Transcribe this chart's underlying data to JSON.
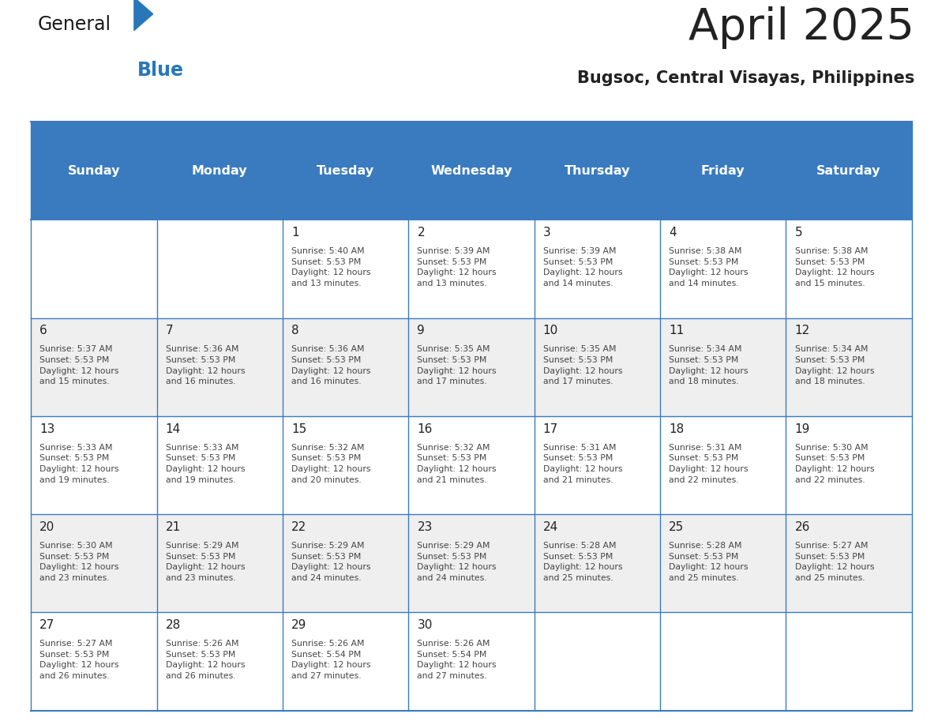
{
  "title": "April 2025",
  "subtitle": "Bugsoc, Central Visayas, Philippines",
  "days_of_week": [
    "Sunday",
    "Monday",
    "Tuesday",
    "Wednesday",
    "Thursday",
    "Friday",
    "Saturday"
  ],
  "header_bg": "#3a7bbf",
  "header_text_color": "#ffffff",
  "cell_bg_even": "#efefef",
  "cell_bg_odd": "#ffffff",
  "cell_border_color": "#3a7bbf",
  "day_number_color": "#222222",
  "info_text_color": "#444444",
  "title_color": "#222222",
  "subtitle_color": "#222222",
  "logo_general_color": "#1a1a1a",
  "logo_blue_color": "#2877b8",
  "weeks": [
    [
      {
        "day": "",
        "sunrise": "",
        "sunset": "",
        "daylight": ""
      },
      {
        "day": "",
        "sunrise": "",
        "sunset": "",
        "daylight": ""
      },
      {
        "day": "1",
        "sunrise": "5:40 AM",
        "sunset": "5:53 PM",
        "daylight": "12 hours and 13 minutes."
      },
      {
        "day": "2",
        "sunrise": "5:39 AM",
        "sunset": "5:53 PM",
        "daylight": "12 hours and 13 minutes."
      },
      {
        "day": "3",
        "sunrise": "5:39 AM",
        "sunset": "5:53 PM",
        "daylight": "12 hours and 14 minutes."
      },
      {
        "day": "4",
        "sunrise": "5:38 AM",
        "sunset": "5:53 PM",
        "daylight": "12 hours and 14 minutes."
      },
      {
        "day": "5",
        "sunrise": "5:38 AM",
        "sunset": "5:53 PM",
        "daylight": "12 hours and 15 minutes."
      }
    ],
    [
      {
        "day": "6",
        "sunrise": "5:37 AM",
        "sunset": "5:53 PM",
        "daylight": "12 hours and 15 minutes."
      },
      {
        "day": "7",
        "sunrise": "5:36 AM",
        "sunset": "5:53 PM",
        "daylight": "12 hours and 16 minutes."
      },
      {
        "day": "8",
        "sunrise": "5:36 AM",
        "sunset": "5:53 PM",
        "daylight": "12 hours and 16 minutes."
      },
      {
        "day": "9",
        "sunrise": "5:35 AM",
        "sunset": "5:53 PM",
        "daylight": "12 hours and 17 minutes."
      },
      {
        "day": "10",
        "sunrise": "5:35 AM",
        "sunset": "5:53 PM",
        "daylight": "12 hours and 17 minutes."
      },
      {
        "day": "11",
        "sunrise": "5:34 AM",
        "sunset": "5:53 PM",
        "daylight": "12 hours and 18 minutes."
      },
      {
        "day": "12",
        "sunrise": "5:34 AM",
        "sunset": "5:53 PM",
        "daylight": "12 hours and 18 minutes."
      }
    ],
    [
      {
        "day": "13",
        "sunrise": "5:33 AM",
        "sunset": "5:53 PM",
        "daylight": "12 hours and 19 minutes."
      },
      {
        "day": "14",
        "sunrise": "5:33 AM",
        "sunset": "5:53 PM",
        "daylight": "12 hours and 19 minutes."
      },
      {
        "day": "15",
        "sunrise": "5:32 AM",
        "sunset": "5:53 PM",
        "daylight": "12 hours and 20 minutes."
      },
      {
        "day": "16",
        "sunrise": "5:32 AM",
        "sunset": "5:53 PM",
        "daylight": "12 hours and 21 minutes."
      },
      {
        "day": "17",
        "sunrise": "5:31 AM",
        "sunset": "5:53 PM",
        "daylight": "12 hours and 21 minutes."
      },
      {
        "day": "18",
        "sunrise": "5:31 AM",
        "sunset": "5:53 PM",
        "daylight": "12 hours and 22 minutes."
      },
      {
        "day": "19",
        "sunrise": "5:30 AM",
        "sunset": "5:53 PM",
        "daylight": "12 hours and 22 minutes."
      }
    ],
    [
      {
        "day": "20",
        "sunrise": "5:30 AM",
        "sunset": "5:53 PM",
        "daylight": "12 hours and 23 minutes."
      },
      {
        "day": "21",
        "sunrise": "5:29 AM",
        "sunset": "5:53 PM",
        "daylight": "12 hours and 23 minutes."
      },
      {
        "day": "22",
        "sunrise": "5:29 AM",
        "sunset": "5:53 PM",
        "daylight": "12 hours and 24 minutes."
      },
      {
        "day": "23",
        "sunrise": "5:29 AM",
        "sunset": "5:53 PM",
        "daylight": "12 hours and 24 minutes."
      },
      {
        "day": "24",
        "sunrise": "5:28 AM",
        "sunset": "5:53 PM",
        "daylight": "12 hours and 25 minutes."
      },
      {
        "day": "25",
        "sunrise": "5:28 AM",
        "sunset": "5:53 PM",
        "daylight": "12 hours and 25 minutes."
      },
      {
        "day": "26",
        "sunrise": "5:27 AM",
        "sunset": "5:53 PM",
        "daylight": "12 hours and 25 minutes."
      }
    ],
    [
      {
        "day": "27",
        "sunrise": "5:27 AM",
        "sunset": "5:53 PM",
        "daylight": "12 hours and 26 minutes."
      },
      {
        "day": "28",
        "sunrise": "5:26 AM",
        "sunset": "5:53 PM",
        "daylight": "12 hours and 26 minutes."
      },
      {
        "day": "29",
        "sunrise": "5:26 AM",
        "sunset": "5:54 PM",
        "daylight": "12 hours and 27 minutes."
      },
      {
        "day": "30",
        "sunrise": "5:26 AM",
        "sunset": "5:54 PM",
        "daylight": "12 hours and 27 minutes."
      },
      {
        "day": "",
        "sunrise": "",
        "sunset": "",
        "daylight": ""
      },
      {
        "day": "",
        "sunrise": "",
        "sunset": "",
        "daylight": ""
      },
      {
        "day": "",
        "sunrise": "",
        "sunset": "",
        "daylight": ""
      }
    ]
  ],
  "num_weeks": 5,
  "figsize": [
    11.88,
    9.18
  ],
  "dpi": 100
}
